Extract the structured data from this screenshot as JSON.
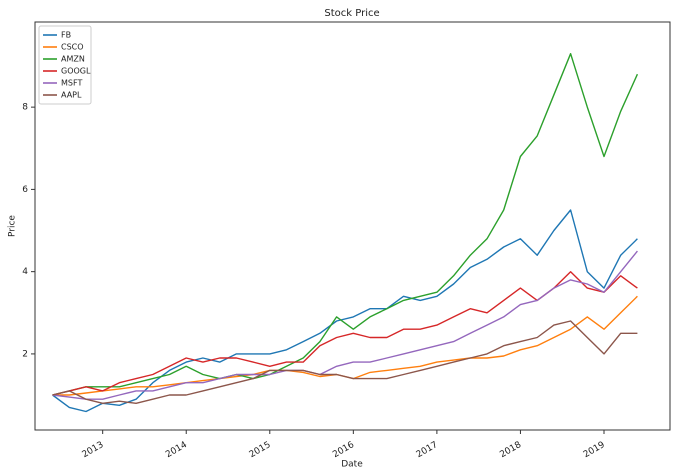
{
  "chart_data": {
    "type": "line",
    "title": "Stock Price",
    "x_label": "Date",
    "y_label": "Price",
    "x": [
      2012.4,
      2012.6,
      2012.8,
      2013.0,
      2013.2,
      2013.4,
      2013.6,
      2013.8,
      2014.0,
      2014.2,
      2014.4,
      2014.6,
      2014.8,
      2015.0,
      2015.2,
      2015.4,
      2015.6,
      2015.8,
      2016.0,
      2016.2,
      2016.4,
      2016.6,
      2016.8,
      2017.0,
      2017.2,
      2017.4,
      2017.6,
      2017.8,
      2018.0,
      2018.2,
      2018.4,
      2018.6,
      2018.8,
      2019.0,
      2019.2,
      2019.4
    ],
    "series": [
      {
        "name": "FB",
        "color": "#1f77b4",
        "values": [
          1.0,
          0.7,
          0.6,
          0.8,
          0.75,
          0.9,
          1.3,
          1.6,
          1.8,
          1.9,
          1.8,
          2.0,
          2.0,
          2.0,
          2.1,
          2.3,
          2.5,
          2.8,
          2.9,
          3.1,
          3.1,
          3.4,
          3.3,
          3.4,
          3.7,
          4.1,
          4.3,
          4.6,
          4.8,
          4.4,
          5.0,
          5.5,
          4.0,
          3.6,
          4.4,
          4.8
        ]
      },
      {
        "name": "CSCO",
        "color": "#ff7f0e",
        "values": [
          1.0,
          1.0,
          1.05,
          1.1,
          1.15,
          1.2,
          1.2,
          1.25,
          1.3,
          1.35,
          1.4,
          1.45,
          1.5,
          1.6,
          1.6,
          1.55,
          1.45,
          1.5,
          1.4,
          1.55,
          1.6,
          1.65,
          1.7,
          1.8,
          1.85,
          1.9,
          1.9,
          1.95,
          2.1,
          2.2,
          2.4,
          2.6,
          2.9,
          2.6,
          3.0,
          3.4
        ]
      },
      {
        "name": "AMZN",
        "color": "#2ca02c",
        "values": [
          1.0,
          1.1,
          1.2,
          1.2,
          1.2,
          1.3,
          1.4,
          1.5,
          1.7,
          1.5,
          1.4,
          1.5,
          1.4,
          1.5,
          1.7,
          1.9,
          2.3,
          2.9,
          2.6,
          2.9,
          3.1,
          3.3,
          3.4,
          3.5,
          3.9,
          4.4,
          4.8,
          5.5,
          6.8,
          7.3,
          8.3,
          9.3,
          8.0,
          6.8,
          7.9,
          8.8
        ]
      },
      {
        "name": "GOOGL",
        "color": "#d62728",
        "values": [
          1.0,
          1.1,
          1.2,
          1.1,
          1.3,
          1.4,
          1.5,
          1.7,
          1.9,
          1.8,
          1.9,
          1.9,
          1.8,
          1.7,
          1.8,
          1.8,
          2.2,
          2.4,
          2.5,
          2.4,
          2.4,
          2.6,
          2.6,
          2.7,
          2.9,
          3.1,
          3.0,
          3.3,
          3.6,
          3.3,
          3.6,
          4.0,
          3.6,
          3.5,
          3.9,
          3.6
        ]
      },
      {
        "name": "MSFT",
        "color": "#9467bd",
        "values": [
          1.0,
          0.95,
          0.9,
          0.9,
          1.0,
          1.1,
          1.1,
          1.2,
          1.3,
          1.3,
          1.4,
          1.5,
          1.5,
          1.5,
          1.6,
          1.6,
          1.5,
          1.7,
          1.8,
          1.8,
          1.9,
          2.0,
          2.1,
          2.2,
          2.3,
          2.5,
          2.7,
          2.9,
          3.2,
          3.3,
          3.6,
          3.8,
          3.7,
          3.5,
          4.0,
          4.5
        ]
      },
      {
        "name": "AAPL",
        "color": "#8c564b",
        "values": [
          1.0,
          1.1,
          0.9,
          0.8,
          0.85,
          0.8,
          0.9,
          1.0,
          1.0,
          1.1,
          1.2,
          1.3,
          1.4,
          1.6,
          1.6,
          1.6,
          1.5,
          1.5,
          1.4,
          1.4,
          1.4,
          1.5,
          1.6,
          1.7,
          1.8,
          1.9,
          2.0,
          2.2,
          2.3,
          2.4,
          2.7,
          2.8,
          2.4,
          2.0,
          2.5,
          2.5
        ]
      }
    ],
    "xlim": [
      2012.19,
      2019.79
    ],
    "xticks": [
      2013,
      2014,
      2015,
      2016,
      2017,
      2018,
      2019
    ],
    "ylim": [
      0.15,
      10.07
    ],
    "yticks": [
      2,
      4,
      6,
      8
    ],
    "grid": false,
    "legend": "upper left"
  }
}
